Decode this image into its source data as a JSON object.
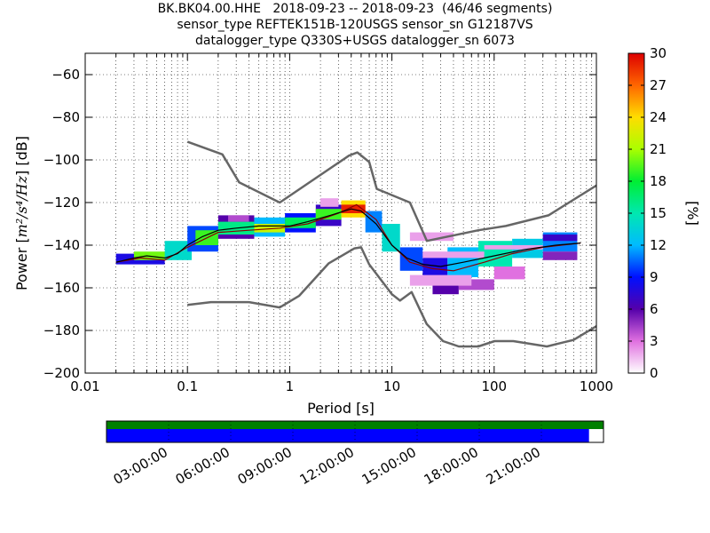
{
  "title_lines": [
    "BK.BK04.00.HHE   2018-09-23 -- 2018-09-23  (46/46 segments)",
    "sensor_type REFTEK151B-120USGS sensor_sn G12187VS",
    "datalogger_type Q330S+USGS datalogger_sn 6073"
  ],
  "chart_data": {
    "type": "heatmap",
    "xlabel": "Period [s]",
    "ylabel_prefix": "Power [",
    "ylabel_math": "m²/s⁴/Hz",
    "ylabel_suffix": "] [dB]",
    "xscale": "log",
    "xlim": [
      0.01,
      1000
    ],
    "ylim": [
      -200,
      -50
    ],
    "x_ticks": [
      {
        "value": 0.01,
        "label": "0.01"
      },
      {
        "value": 0.1,
        "label": "0.1"
      },
      {
        "value": 1,
        "label": "1"
      },
      {
        "value": 10,
        "label": "10"
      },
      {
        "value": 100,
        "label": "100"
      },
      {
        "value": 1000,
        "label": "1000"
      }
    ],
    "y_ticks": [
      {
        "value": -60,
        "label": "−60"
      },
      {
        "value": -80,
        "label": "−80"
      },
      {
        "value": -100,
        "label": "−100"
      },
      {
        "value": -120,
        "label": "−120"
      },
      {
        "value": -140,
        "label": "−140"
      },
      {
        "value": -160,
        "label": "−160"
      },
      {
        "value": -180,
        "label": "−180"
      },
      {
        "value": -200,
        "label": "−200"
      }
    ],
    "grid": true,
    "colorbar": {
      "label": "[%]",
      "min": 0,
      "max": 30,
      "ticks": [
        {
          "value": 0,
          "label": "0"
        },
        {
          "value": 3,
          "label": "3"
        },
        {
          "value": 6,
          "label": "6"
        },
        {
          "value": 9,
          "label": "9"
        },
        {
          "value": 12,
          "label": "12"
        },
        {
          "value": 15,
          "label": "15"
        },
        {
          "value": 18,
          "label": "18"
        },
        {
          "value": 21,
          "label": "21"
        },
        {
          "value": 24,
          "label": "24"
        },
        {
          "value": 27,
          "label": "27"
        },
        {
          "value": 30,
          "label": "30"
        }
      ]
    },
    "model_curves": {
      "color": "#666666",
      "high": [
        [
          0.1,
          -91.5
        ],
        [
          0.22,
          -97.4
        ],
        [
          0.32,
          -110.5
        ],
        [
          0.8,
          -120
        ],
        [
          3.8,
          -98
        ],
        [
          4.6,
          -96.5
        ],
        [
          6,
          -101
        ],
        [
          7.1,
          -113.6
        ],
        [
          15,
          -120
        ],
        [
          22,
          -138
        ],
        [
          70,
          -133
        ],
        [
          130,
          -131
        ],
        [
          340,
          -126
        ],
        [
          1000,
          -112
        ]
      ],
      "low": [
        [
          0.1,
          -168
        ],
        [
          0.17,
          -166.7
        ],
        [
          0.4,
          -166.7
        ],
        [
          0.8,
          -169.2
        ],
        [
          1.24,
          -163.7
        ],
        [
          2.4,
          -148.6
        ],
        [
          4.3,
          -141.5
        ],
        [
          5,
          -141
        ],
        [
          6,
          -149
        ],
        [
          10,
          -163
        ],
        [
          12,
          -166
        ],
        [
          15.6,
          -162
        ],
        [
          21.9,
          -177
        ],
        [
          31.6,
          -185
        ],
        [
          45,
          -187.5
        ],
        [
          70,
          -187.5
        ],
        [
          101,
          -185
        ],
        [
          154,
          -185
        ],
        [
          328,
          -187.5
        ],
        [
          600,
          -184.4
        ],
        [
          1000,
          -178
        ]
      ]
    },
    "median": {
      "color": "#000000",
      "points": [
        [
          0.02,
          -148
        ],
        [
          0.03,
          -146
        ],
        [
          0.04,
          -145
        ],
        [
          0.06,
          -146
        ],
        [
          0.08,
          -144
        ],
        [
          0.1,
          -140
        ],
        [
          0.14,
          -136
        ],
        [
          0.2,
          -133
        ],
        [
          0.3,
          -132
        ],
        [
          0.5,
          -131
        ],
        [
          0.7,
          -131
        ],
        [
          1,
          -131
        ],
        [
          1.5,
          -129
        ],
        [
          2.5,
          -126
        ],
        [
          4,
          -123
        ],
        [
          5,
          -124
        ],
        [
          7,
          -130
        ],
        [
          10,
          -140
        ],
        [
          14,
          -146
        ],
        [
          20,
          -149
        ],
        [
          30,
          -150
        ],
        [
          50,
          -148
        ],
        [
          100,
          -145
        ],
        [
          200,
          -142
        ],
        [
          400,
          -140
        ],
        [
          700,
          -139
        ]
      ]
    },
    "mode": {
      "color": "#8b0000",
      "points": [
        [
          0.02,
          -148
        ],
        [
          0.035,
          -146
        ],
        [
          0.06,
          -147
        ],
        [
          0.1,
          -141
        ],
        [
          0.2,
          -134
        ],
        [
          0.4,
          -133
        ],
        [
          0.8,
          -132
        ],
        [
          1.5,
          -130
        ],
        [
          3,
          -125
        ],
        [
          4.5,
          -121
        ],
        [
          7,
          -128
        ],
        [
          10,
          -140
        ],
        [
          15,
          -148
        ],
        [
          25,
          -151
        ],
        [
          40,
          -152
        ],
        [
          80,
          -148
        ],
        [
          150,
          -144
        ],
        [
          300,
          -141
        ],
        [
          700,
          -139
        ]
      ]
    },
    "density_bands": [
      {
        "x": [
          0.02,
          0.06
        ],
        "y": [
          -149,
          -144
        ],
        "pct": 8
      },
      {
        "x": [
          0.03,
          0.07
        ],
        "y": [
          -147,
          -143
        ],
        "pct": 20
      },
      {
        "x": [
          0.06,
          0.11
        ],
        "y": [
          -147,
          -138
        ],
        "pct": 14
      },
      {
        "x": [
          0.1,
          0.2
        ],
        "y": [
          -143,
          -131
        ],
        "pct": 10
      },
      {
        "x": [
          0.12,
          0.2
        ],
        "y": [
          -140,
          -133
        ],
        "pct": 19
      },
      {
        "x": [
          0.2,
          0.45
        ],
        "y": [
          -137,
          -126
        ],
        "pct": 6
      },
      {
        "x": [
          0.2,
          0.45
        ],
        "y": [
          -135,
          -129
        ],
        "pct": 16
      },
      {
        "x": [
          0.45,
          0.9
        ],
        "y": [
          -136,
          -127
        ],
        "pct": 12
      },
      {
        "x": [
          0.45,
          0.9
        ],
        "y": [
          -134,
          -130
        ],
        "pct": 22
      },
      {
        "x": [
          0.9,
          1.8
        ],
        "y": [
          -134,
          -125
        ],
        "pct": 9
      },
      {
        "x": [
          0.9,
          1.8
        ],
        "y": [
          -132,
          -127
        ],
        "pct": 17
      },
      {
        "x": [
          1.8,
          3.2
        ],
        "y": [
          -131,
          -121
        ],
        "pct": 7
      },
      {
        "x": [
          1.8,
          3.2
        ],
        "y": [
          -128,
          -123
        ],
        "pct": 19
      },
      {
        "x": [
          3.2,
          5.5
        ],
        "y": [
          -127,
          -119
        ],
        "pct": 24
      },
      {
        "x": [
          3.2,
          5.5
        ],
        "y": [
          -125,
          -121
        ],
        "pct": 29
      },
      {
        "x": [
          5.5,
          8
        ],
        "y": [
          -134,
          -124
        ],
        "pct": 11
      },
      {
        "x": [
          8,
          12
        ],
        "y": [
          -143,
          -130
        ],
        "pct": 14
      },
      {
        "x": [
          12,
          20
        ],
        "y": [
          -152,
          -141
        ],
        "pct": 10
      },
      {
        "x": [
          20,
          35
        ],
        "y": [
          -156,
          -144
        ],
        "pct": 8
      },
      {
        "x": [
          25,
          45
        ],
        "y": [
          -163,
          -157
        ],
        "pct": 6
      },
      {
        "x": [
          35,
          70
        ],
        "y": [
          -155,
          -141
        ],
        "pct": 12
      },
      {
        "x": [
          45,
          100
        ],
        "y": [
          -161,
          -156
        ],
        "pct": 4
      },
      {
        "x": [
          70,
          150
        ],
        "y": [
          -150,
          -138
        ],
        "pct": 15
      },
      {
        "x": [
          100,
          200
        ],
        "y": [
          -156,
          -150
        ],
        "pct": 3
      },
      {
        "x": [
          150,
          300
        ],
        "y": [
          -146,
          -137
        ],
        "pct": 13
      },
      {
        "x": [
          300,
          650
        ],
        "y": [
          -143,
          -134
        ],
        "pct": 11
      },
      {
        "x": [
          300,
          650
        ],
        "y": [
          -138,
          -135
        ],
        "pct": 7
      },
      {
        "x": [
          300,
          650
        ],
        "y": [
          -147,
          -143
        ],
        "pct": 5
      },
      {
        "x": [
          15,
          40
        ],
        "y": [
          -138,
          -134
        ],
        "pct": 2
      },
      {
        "x": [
          20,
          80
        ],
        "y": [
          -146,
          -143
        ],
        "pct": 2
      },
      {
        "x": [
          80,
          300
        ],
        "y": [
          -142,
          -140
        ],
        "pct": 2
      },
      {
        "x": [
          15,
          60
        ],
        "y": [
          -159,
          -154
        ],
        "pct": 2
      },
      {
        "x": [
          0.25,
          0.4
        ],
        "y": [
          -129,
          -126
        ],
        "pct": 4
      },
      {
        "x": [
          2,
          3
        ],
        "y": [
          -122,
          -118
        ],
        "pct": 2
      }
    ],
    "timeline": {
      "tick_labels": [
        "03:00:00",
        "06:00:00",
        "09:00:00",
        "12:00:00",
        "15:00:00",
        "18:00:00",
        "21:00:00"
      ],
      "tick_hours": [
        3,
        6,
        9,
        12,
        15,
        18,
        21
      ],
      "span_hours": 24,
      "data_coverage_end_hours": 23.3,
      "colors": {
        "data": "#0000ff",
        "gap": "#ffffff",
        "used": "#008000"
      }
    }
  }
}
